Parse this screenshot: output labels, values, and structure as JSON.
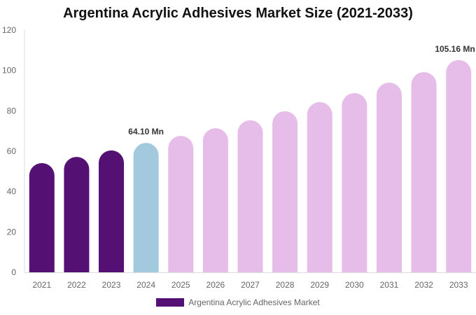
{
  "chart_data": {
    "type": "bar",
    "title": "Argentina Acrylic Adhesives Market Size (2021-2033)",
    "categories": [
      "2021",
      "2022",
      "2023",
      "2024",
      "2025",
      "2026",
      "2027",
      "2028",
      "2029",
      "2030",
      "2031",
      "2032",
      "2033"
    ],
    "series": [
      {
        "name": "Argentina Acrylic Adhesives Market",
        "values": [
          54.1,
          57.2,
          60.4,
          64.1,
          67.6,
          71.4,
          75.3,
          79.8,
          84.3,
          88.8,
          94.0,
          99.2,
          105.16
        ]
      }
    ],
    "data_labels": [
      {
        "category": "2024",
        "text": "64.10 Mn"
      },
      {
        "category": "2033",
        "text": "105.16 Mn"
      }
    ],
    "ylim": [
      0,
      120
    ],
    "yticks": [
      0,
      20,
      40,
      60,
      80,
      100,
      120
    ],
    "xlabel": "",
    "ylabel": "",
    "grid": false,
    "legend": "bottom",
    "colors": {
      "historical": "#541173",
      "current": "#a3c9de",
      "forecast": "#e6bde9"
    }
  }
}
